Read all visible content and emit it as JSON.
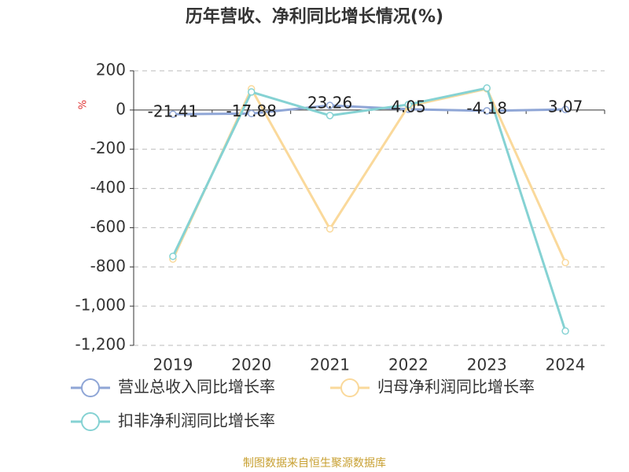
{
  "chart_data": {
    "type": "line",
    "title": "历年营收、净利同比增长情况(%)",
    "y_label": "%",
    "categories": [
      "2019",
      "2020",
      "2021",
      "2022",
      "2023",
      "2024"
    ],
    "series": [
      {
        "name": "营业总收入同比增长率",
        "color": "#8fa6d6",
        "values": [
          -21.41,
          -17.88,
          23.26,
          4.05,
          -4.18,
          3.07
        ],
        "show_labels": true
      },
      {
        "name": "归母净利润同比增长率",
        "color": "#fad99b",
        "values": [
          -760,
          108,
          -606,
          20,
          108,
          -778
        ],
        "show_labels": false
      },
      {
        "name": "扣非净利润同比增长率",
        "color": "#85d2d3",
        "values": [
          -746,
          92,
          -28,
          28,
          112,
          -1127
        ],
        "show_labels": false
      }
    ],
    "ylim": [
      -1200,
      200
    ],
    "yticks": [
      {
        "value": -1200,
        "label": "-1,200"
      },
      {
        "value": -1000,
        "label": "-1,000"
      },
      -800,
      -600,
      -400,
      -200,
      0,
      200
    ],
    "grid": true,
    "source": "制图数据来自恒生聚源数据库"
  }
}
